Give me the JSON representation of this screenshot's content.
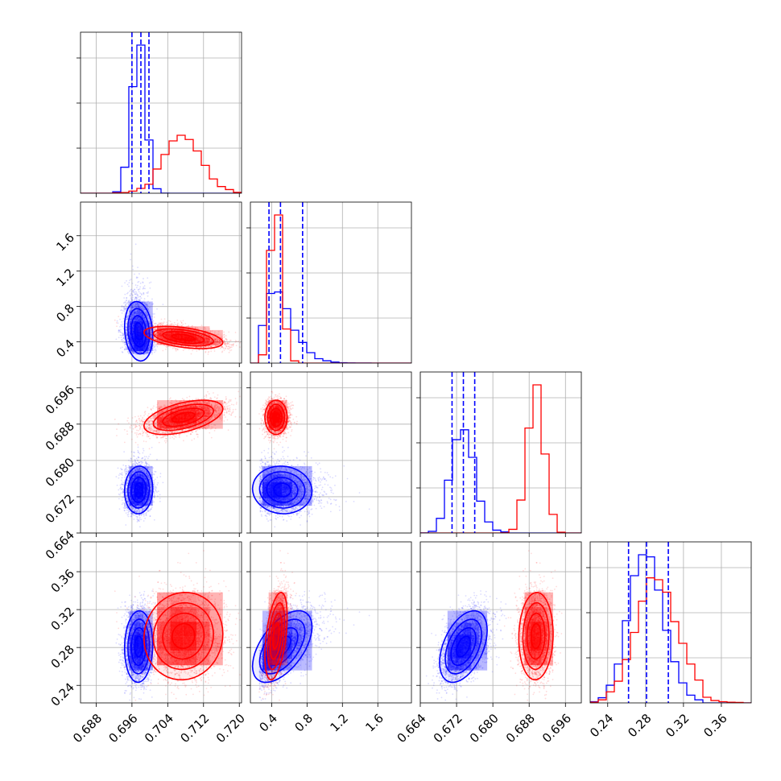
{
  "chart_data": {
    "type": "corner",
    "colors": {
      "series_a": "#0000ff",
      "series_b": "#ff0000",
      "grid": "#b0b0b0"
    },
    "parameters": [
      {
        "ticks": [
          "0.688",
          "0.696",
          "0.704",
          "0.712",
          "0.720"
        ],
        "range": [
          0.6845,
          0.7205
        ]
      },
      {
        "ticks": [
          "0.4",
          "0.8",
          "1.2",
          "1.6"
        ],
        "range": [
          0.16,
          1.98
        ]
      },
      {
        "ticks": [
          "0.664",
          "0.672",
          "0.680",
          "0.688",
          "0.696"
        ],
        "range": [
          0.664,
          0.6995
        ]
      },
      {
        "ticks": [
          "0.24",
          "0.28",
          "0.32",
          "0.36"
        ],
        "range": [
          0.2215,
          0.3915
        ]
      }
    ],
    "series": [
      {
        "color": "#0000ff",
        "means": [
          0.6975,
          0.52,
          0.6735,
          0.281
        ],
        "sigmas": [
          0.0015,
          0.16,
          0.0025,
          0.018
        ],
        "skew": [
          0,
          0.35,
          0.1,
          0.05
        ],
        "quantiles": [
          [
            0.696,
            0.698,
            0.6998
          ],
          [
            0.37,
            0.5,
            0.75
          ],
          [
            0.671,
            0.6735,
            0.676
          ],
          [
            0.262,
            0.281,
            0.304
          ]
        ],
        "correlations": [
          [
            0,
            1,
            -0.15
          ],
          [
            0,
            2,
            0.05
          ],
          [
            0,
            3,
            0.05
          ],
          [
            1,
            2,
            -0.05
          ],
          [
            1,
            3,
            0.55
          ],
          [
            2,
            3,
            0.45
          ]
        ]
      },
      {
        "color": "#ff0000",
        "means": [
          0.7075,
          0.45,
          0.6895,
          0.292
        ],
        "sigmas": [
          0.0042,
          0.06,
          0.0018,
          0.022
        ],
        "skew": [
          0,
          0.1,
          0,
          0.05
        ],
        "quantiles": [],
        "correlations": [
          [
            0,
            1,
            -0.45
          ],
          [
            0,
            2,
            0.5
          ],
          [
            0,
            3,
            0.05
          ],
          [
            1,
            2,
            0.0
          ],
          [
            1,
            3,
            0.45
          ],
          [
            2,
            3,
            0.05
          ]
        ]
      }
    ]
  }
}
